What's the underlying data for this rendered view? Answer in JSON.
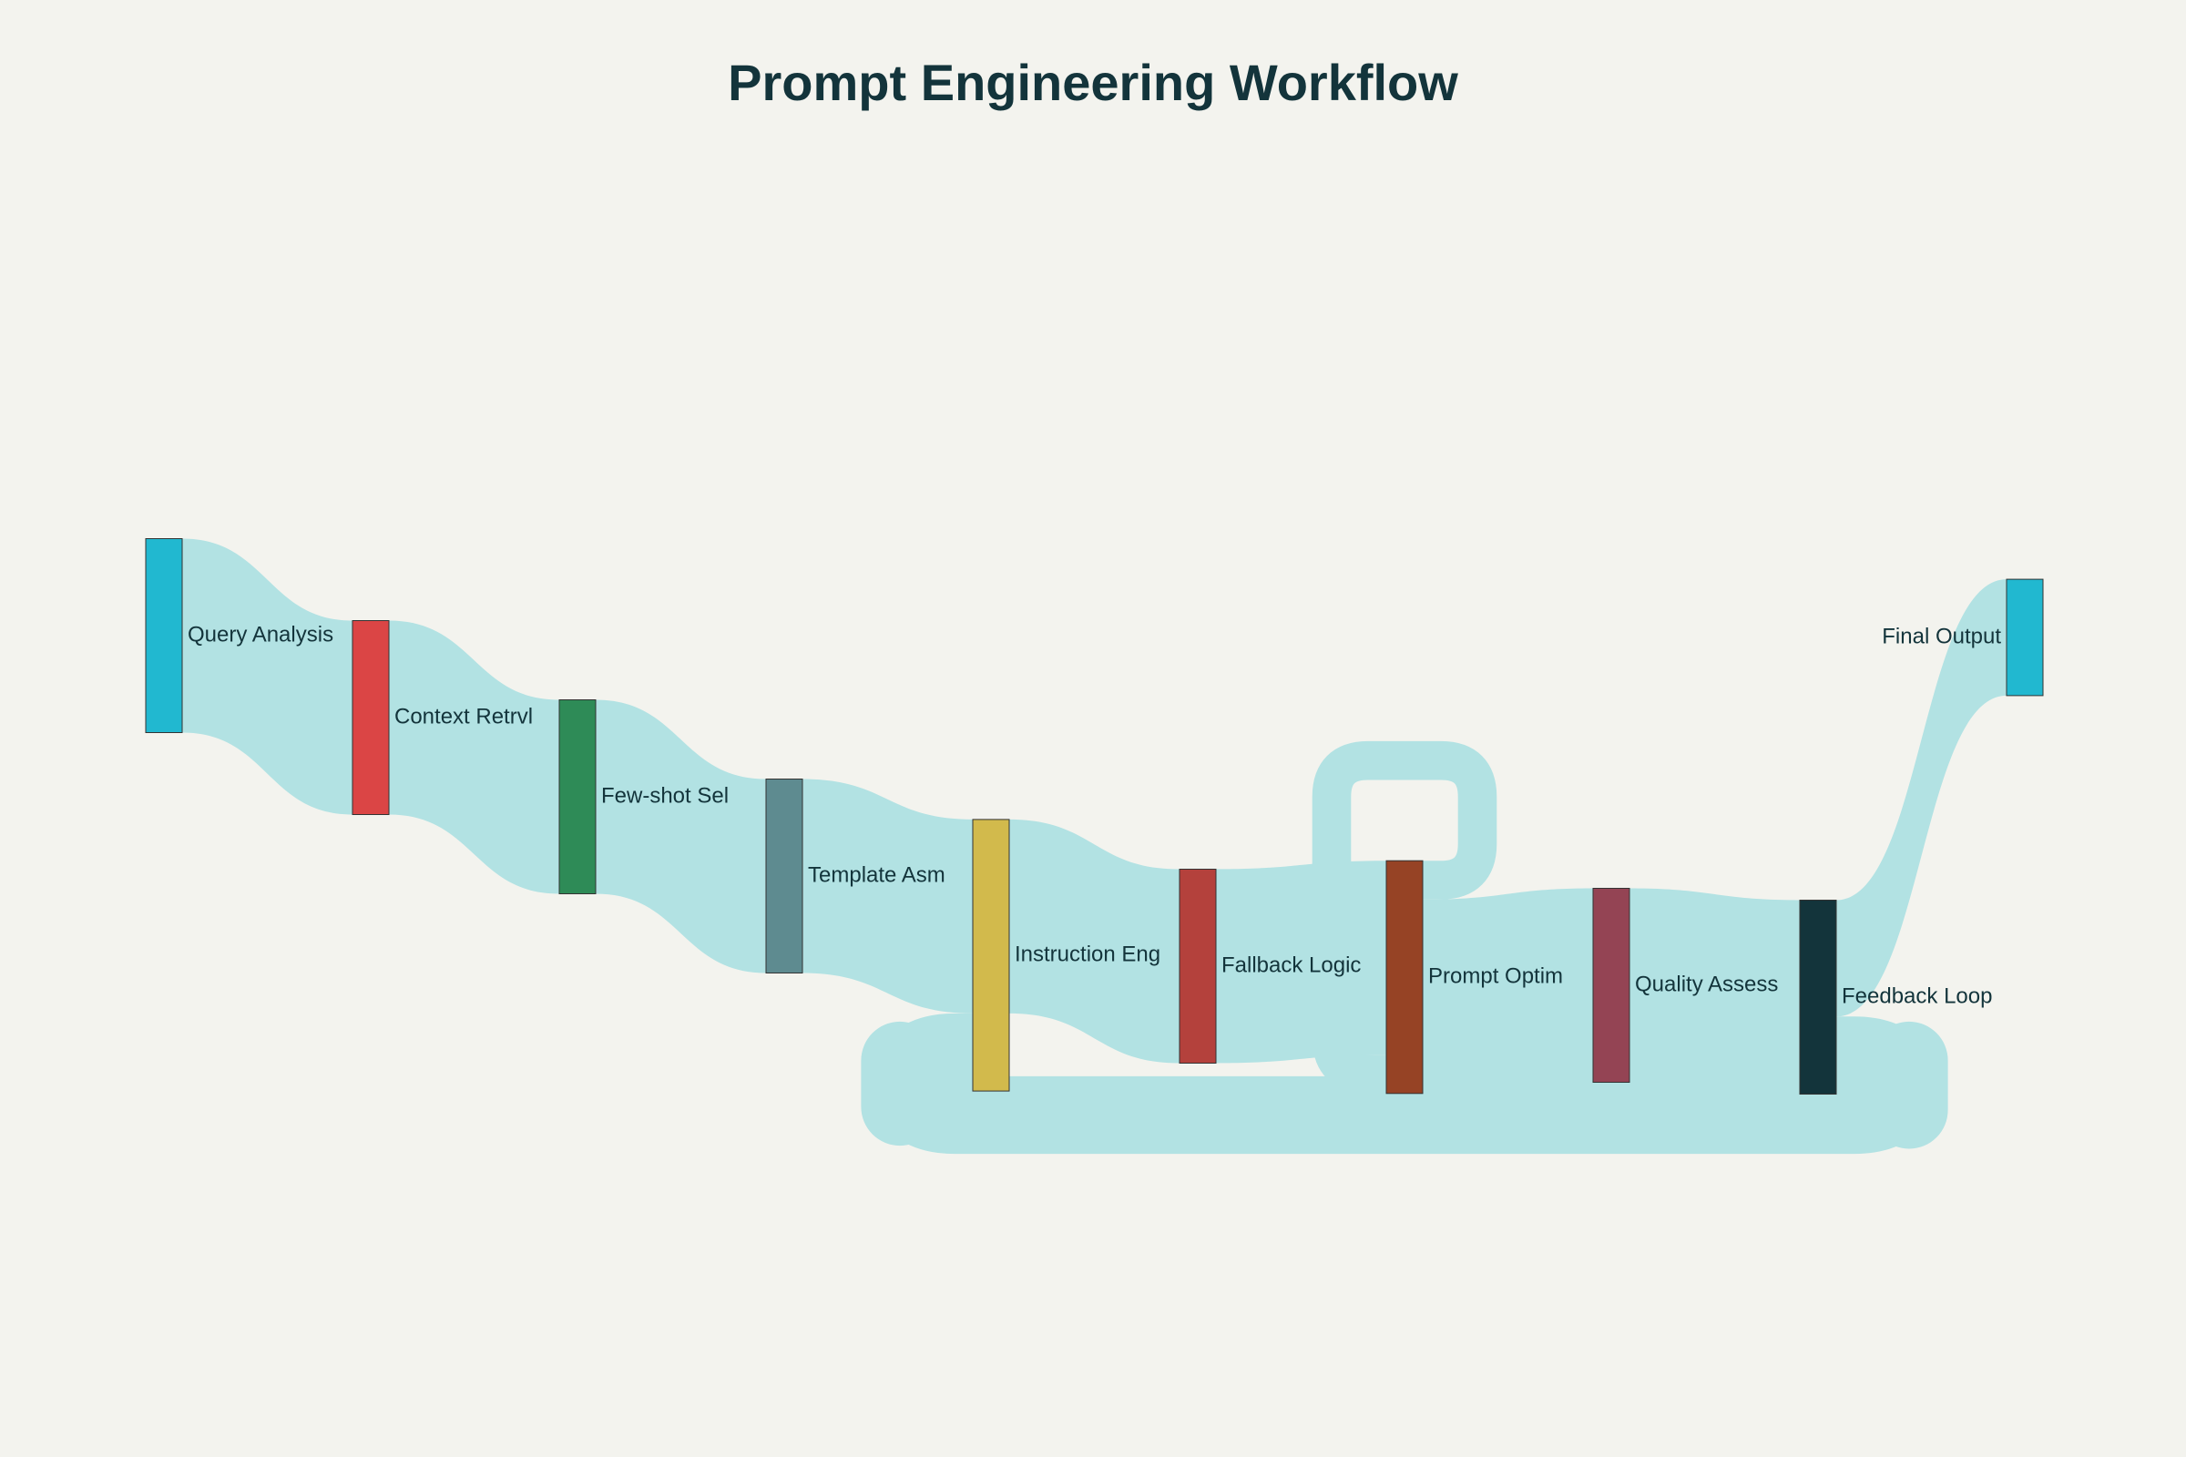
{
  "chart_data": {
    "type": "sankey",
    "title": "Prompt Engineering Workflow",
    "link_color": "#b2e2e3",
    "nodes": [
      {
        "id": "query",
        "label": "Query Analysis",
        "color": "#21b8d0"
      },
      {
        "id": "context",
        "label": "Context Retrvl",
        "color": "#db4545"
      },
      {
        "id": "fewshot",
        "label": "Few-shot Sel",
        "color": "#2e8b57"
      },
      {
        "id": "template",
        "label": "Template Asm",
        "color": "#5e8b90"
      },
      {
        "id": "instruction",
        "label": "Instruction Eng",
        "color": "#d2ba4c"
      },
      {
        "id": "fallback",
        "label": "Fallback Logic",
        "color": "#b4413c"
      },
      {
        "id": "optim",
        "label": "Prompt Optim",
        "color": "#964325"
      },
      {
        "id": "quality",
        "label": "Quality Assess",
        "color": "#944454"
      },
      {
        "id": "feedback",
        "label": "Feedback Loop",
        "color": "#13343b"
      },
      {
        "id": "final",
        "label": "Final Output",
        "color": "#21b8d0"
      }
    ],
    "links": [
      {
        "source": "query",
        "target": "context",
        "value": 100
      },
      {
        "source": "context",
        "target": "fewshot",
        "value": 100
      },
      {
        "source": "fewshot",
        "target": "template",
        "value": 100
      },
      {
        "source": "template",
        "target": "instruction",
        "value": 100
      },
      {
        "source": "instruction",
        "target": "fallback",
        "value": 100
      },
      {
        "source": "fallback",
        "target": "optim",
        "value": 100
      },
      {
        "source": "optim",
        "target": "optim",
        "value": 20
      },
      {
        "source": "optim",
        "target": "quality",
        "value": 100
      },
      {
        "source": "quality",
        "target": "feedback",
        "value": 100
      },
      {
        "source": "feedback",
        "target": "final",
        "value": 60
      },
      {
        "source": "feedback",
        "target": "instruction",
        "value": 40
      }
    ]
  }
}
